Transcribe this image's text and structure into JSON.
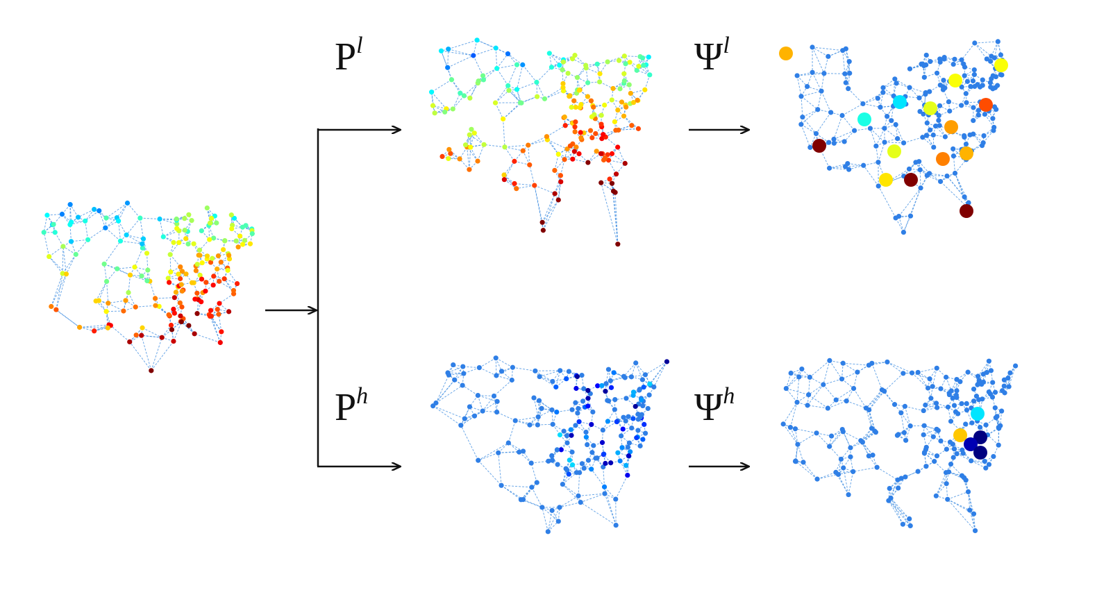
{
  "labels": [
    {
      "base": "P",
      "sup": "l"
    },
    {
      "base": "Ψ",
      "sup": "l"
    },
    {
      "base": "P",
      "sup": "h"
    },
    {
      "base": "Ψ",
      "sup": "h"
    }
  ]
}
